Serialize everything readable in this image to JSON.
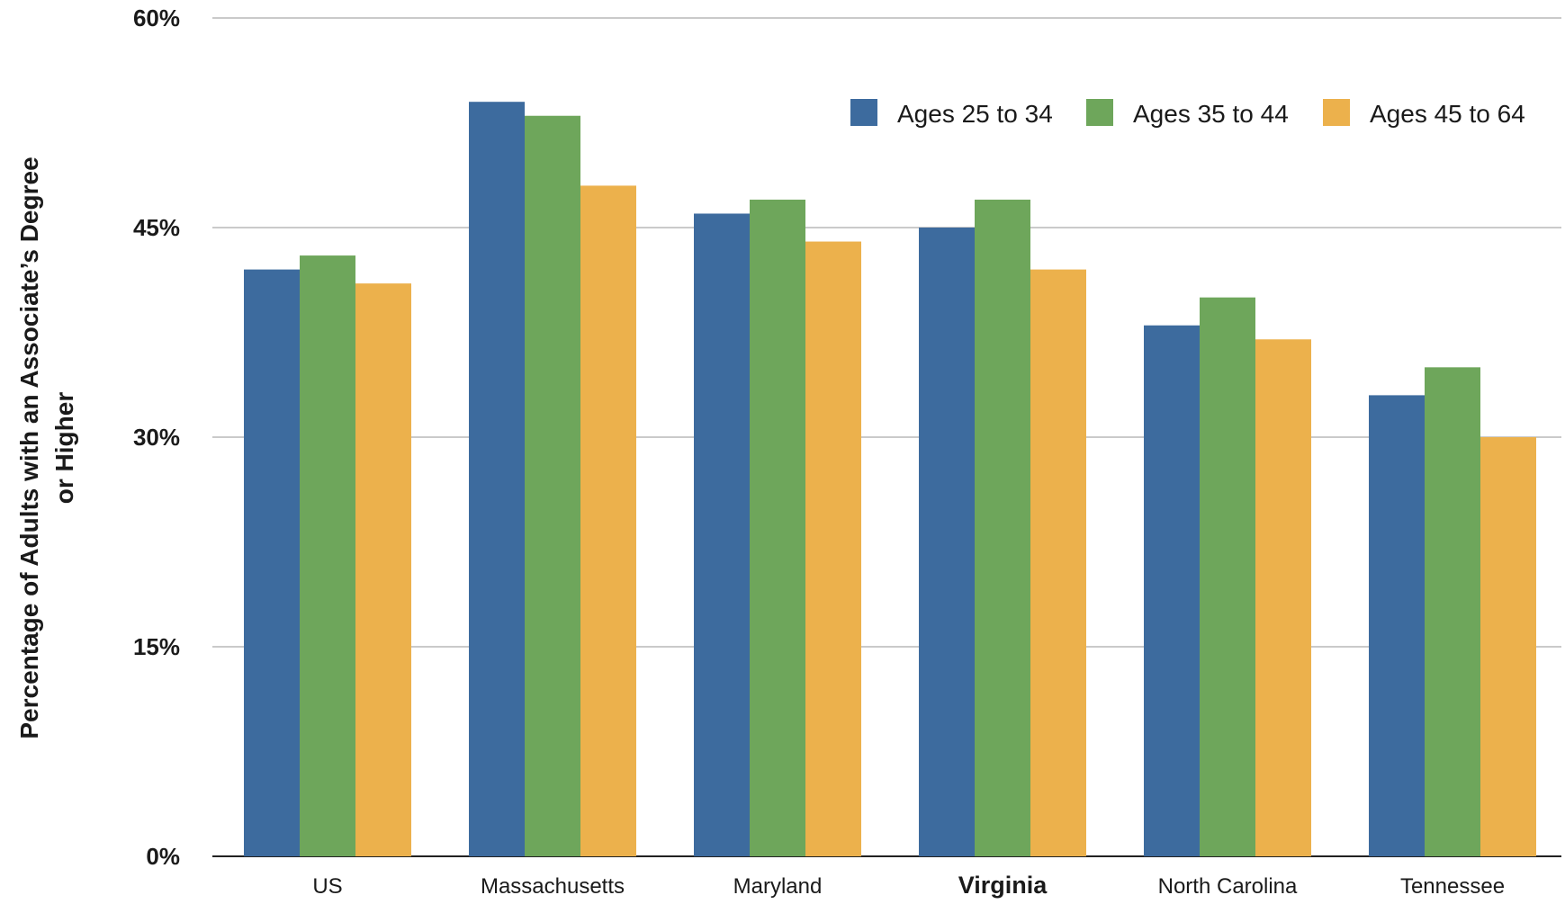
{
  "chart_data": {
    "type": "bar",
    "categories": [
      "US",
      "Massachusetts",
      "Maryland",
      "Virginia",
      "North Carolina",
      "Tennessee"
    ],
    "highlight_category": "Virginia",
    "highlight_color": "#5a2a27",
    "series": [
      {
        "name": "Ages 25 to 34",
        "color": "#3d6b9e",
        "values": [
          42,
          54,
          46,
          45,
          38,
          33
        ]
      },
      {
        "name": "Ages 35 to 44",
        "color": "#6ea65b",
        "values": [
          43,
          53,
          47,
          47,
          40,
          35
        ]
      },
      {
        "name": "Ages 45 to 64",
        "color": "#ecb14c",
        "values": [
          41,
          48,
          44,
          42,
          37,
          30
        ]
      }
    ],
    "ylabel_lines": [
      "Percentage of Adults with an Associate’s Degree",
      "or Higher"
    ],
    "ylim": [
      0,
      60
    ],
    "yticks": [
      0,
      15,
      30,
      45,
      60
    ],
    "ytick_labels": [
      "0%",
      "15%",
      "30%",
      "45%",
      "60%"
    ],
    "grid": true,
    "legend_position": "top-right"
  }
}
